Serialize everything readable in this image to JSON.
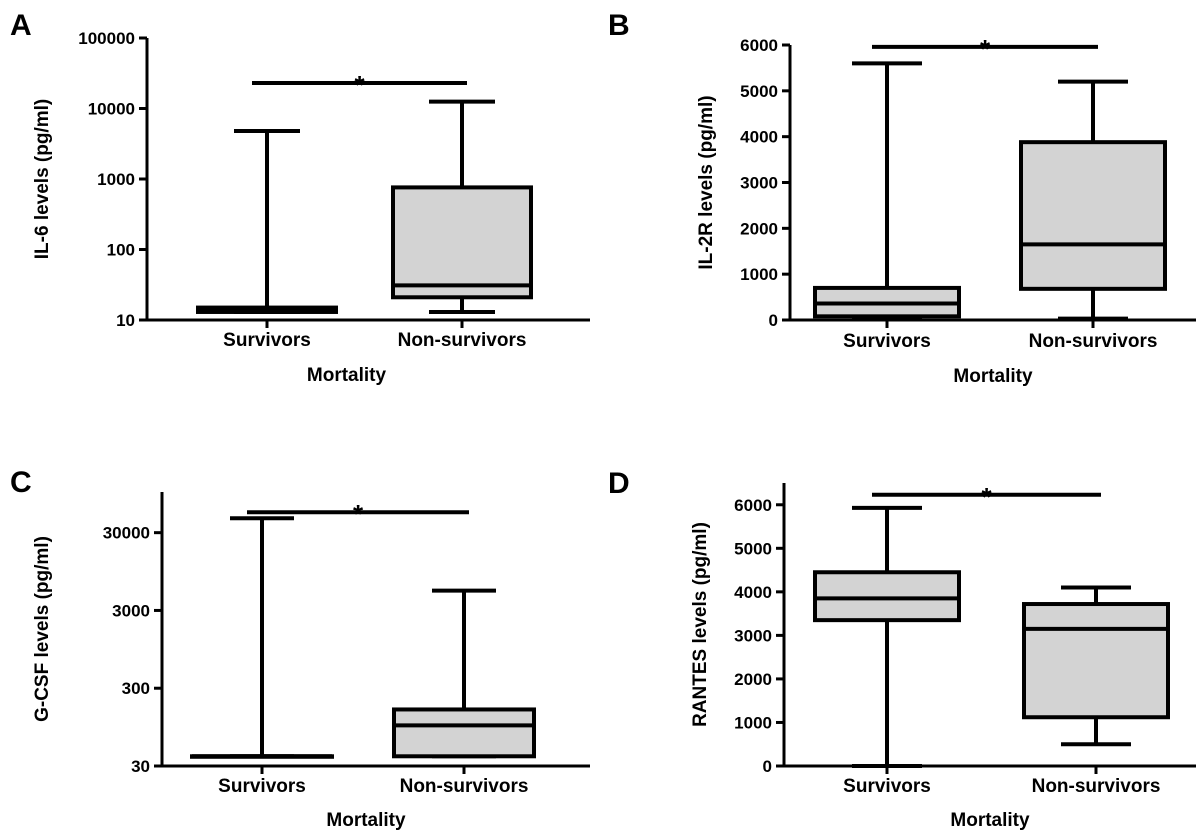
{
  "colors": {
    "box_fill": "#d3d3d3",
    "stroke": "#000000",
    "background": "#ffffff"
  },
  "chart_data": [
    {
      "panel": "A",
      "type": "box",
      "xlabel": "Mortality",
      "ylabel": "IL-6 levels (pg/ml)",
      "yscale": "log",
      "ylim": [
        10,
        100000
      ],
      "yticks": [
        10,
        100,
        1000,
        10000,
        100000
      ],
      "ytick_labels": [
        "10",
        "100",
        "1000",
        "10000",
        "100000"
      ],
      "categories": [
        "Survivors",
        "Non-survivors"
      ],
      "boxes": [
        {
          "min": 13,
          "q1": 13,
          "median": 14,
          "q3": 15,
          "max": 4800
        },
        {
          "min": 13,
          "q1": 21,
          "median": 31,
          "q3": 760,
          "max": 12500
        }
      ],
      "significance": {
        "between": [
          0,
          1
        ],
        "label": "*",
        "y": 23000
      }
    },
    {
      "panel": "B",
      "type": "box",
      "xlabel": "Mortality",
      "ylabel": "IL-2R levels (pg/ml)",
      "yscale": "linear",
      "ylim": [
        0,
        6000
      ],
      "yticks": [
        0,
        1000,
        2000,
        3000,
        4000,
        5000,
        6000
      ],
      "ytick_labels": [
        "0",
        "1000",
        "2000",
        "3000",
        "4000",
        "5000",
        "6000"
      ],
      "categories": [
        "Survivors",
        "Non-survivors"
      ],
      "boxes": [
        {
          "min": 20,
          "q1": 80,
          "median": 360,
          "q3": 700,
          "max": 5600
        },
        {
          "min": 30,
          "q1": 680,
          "median": 1650,
          "q3": 3880,
          "max": 5200
        }
      ],
      "significance": {
        "between": [
          0,
          1
        ],
        "label": "*",
        "y": 5960
      }
    },
    {
      "panel": "C",
      "type": "box",
      "xlabel": "Mortality",
      "ylabel": "G-CSF levels (pg/ml)",
      "yscale": "log",
      "ylim": [
        30,
        100000
      ],
      "yticks": [
        30,
        300,
        3000,
        30000
      ],
      "ytick_labels": [
        "30",
        "300",
        "3000",
        "30000"
      ],
      "categories": [
        "Survivors",
        "Non-survivors"
      ],
      "boxes": [
        {
          "min": 40,
          "q1": 40,
          "median": 40,
          "q3": 40,
          "max": 46000
        },
        {
          "min": 40,
          "q1": 40,
          "median": 100,
          "q3": 160,
          "max": 5400
        }
      ],
      "significance": {
        "between": [
          0,
          1
        ],
        "label": "*",
        "y": 55000
      }
    },
    {
      "panel": "D",
      "type": "box",
      "xlabel": "Mortality",
      "ylabel": "RANTES levels (pg/ml)",
      "yscale": "linear",
      "ylim": [
        0,
        6500
      ],
      "yticks": [
        0,
        1000,
        2000,
        3000,
        4000,
        5000,
        6000
      ],
      "ytick_labels": [
        "0",
        "1000",
        "2000",
        "3000",
        "4000",
        "5000",
        "6000"
      ],
      "categories": [
        "Survivors",
        "Non-survivors"
      ],
      "boxes": [
        {
          "min": 0,
          "q1": 3350,
          "median": 3850,
          "q3": 4450,
          "max": 5930
        },
        {
          "min": 500,
          "q1": 1120,
          "median": 3150,
          "q3": 3720,
          "max": 4100
        }
      ],
      "significance": {
        "between": [
          0,
          1
        ],
        "label": "*",
        "y": 6230
      }
    }
  ]
}
